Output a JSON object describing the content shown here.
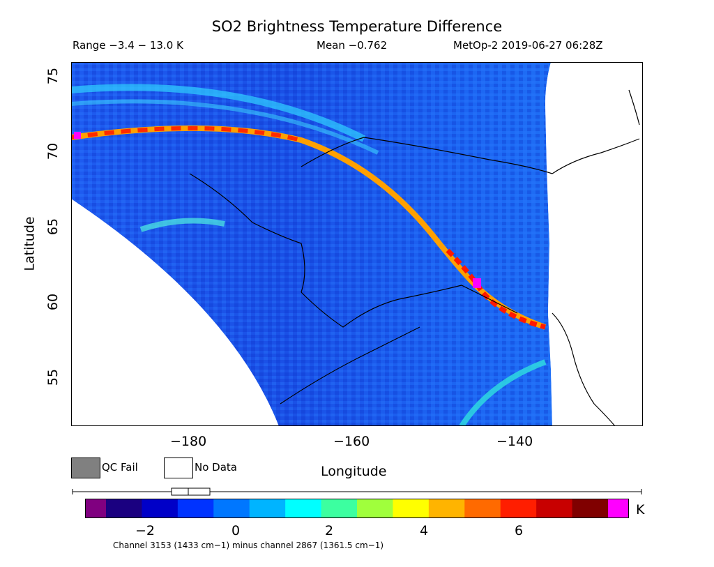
{
  "header": {
    "title": "SO2 Brightness Temperature Difference",
    "range": "Range −3.4 − 13.0 K",
    "mean": "Mean −0.762",
    "satellite": "MetOp-2 2019-06-27 06:28Z"
  },
  "map": {
    "lat_ticks": [
      "55",
      "60",
      "65",
      "70",
      "75"
    ],
    "lon_ticks": [
      "−180",
      "−160",
      "−140"
    ],
    "xlabel": "Longitude",
    "ylabel": "Latitude"
  },
  "legend": {
    "qc_fail": "QC Fail",
    "no_data": "No Data",
    "qc_fail_color": "#808080",
    "no_data_color": "#ffffff"
  },
  "colorbar": {
    "tick_labels": [
      "−2",
      "0",
      "2",
      "4",
      "6"
    ],
    "unit": "K",
    "under_color": "#800080",
    "over_color": "#ff00ff",
    "colors": [
      "#1a0080",
      "#0000c8",
      "#0033ff",
      "#0077ff",
      "#00b4ff",
      "#00ffff",
      "#3cffa0",
      "#a0ff3c",
      "#ffff00",
      "#ffb400",
      "#ff6a00",
      "#ff1e00",
      "#c80000",
      "#800000"
    ]
  },
  "footnote": "Channel 3153 (1433 cm−1) minus channel 2867 (1361.5 cm−1)"
}
